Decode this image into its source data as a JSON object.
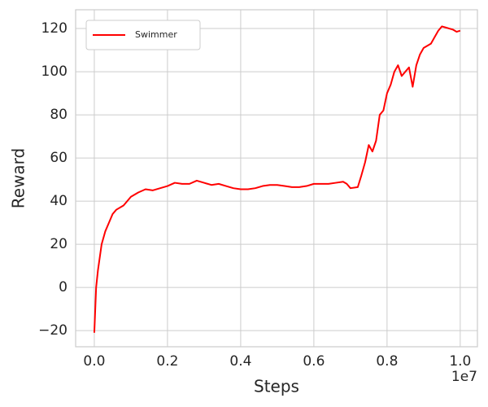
{
  "chart_data": {
    "type": "line",
    "xlabel": "Steps",
    "ylabel": "Reward",
    "x_offset_label": "1e7",
    "x": [
      0,
      0.005,
      0.01,
      0.02,
      0.03,
      0.04,
      0.05,
      0.06,
      0.08,
      0.1,
      0.12,
      0.14,
      0.16,
      0.18,
      0.2,
      0.22,
      0.24,
      0.26,
      0.28,
      0.3,
      0.32,
      0.34,
      0.36,
      0.38,
      0.4,
      0.42,
      0.44,
      0.46,
      0.48,
      0.5,
      0.52,
      0.54,
      0.56,
      0.58,
      0.6,
      0.62,
      0.64,
      0.66,
      0.68,
      0.69,
      0.7,
      0.72,
      0.73,
      0.74,
      0.75,
      0.76,
      0.77,
      0.78,
      0.79,
      0.8,
      0.81,
      0.82,
      0.83,
      0.84,
      0.85,
      0.86,
      0.87,
      0.88,
      0.89,
      0.9,
      0.91,
      0.92,
      0.93,
      0.94,
      0.95,
      0.96,
      0.97,
      0.98,
      0.99,
      1.0
    ],
    "series": [
      {
        "name": "Swimmer",
        "color": "#ff0000",
        "values": [
          -21,
          0,
          8,
          20,
          26,
          30,
          34,
          36,
          38,
          42,
          44,
          45.5,
          45,
          46,
          47,
          48.5,
          48,
          48,
          49.5,
          48.5,
          47.5,
          48,
          47,
          46,
          45.5,
          45.5,
          46,
          47,
          47.5,
          47.5,
          47,
          46.5,
          46.5,
          47,
          48,
          48,
          48,
          48.5,
          49,
          48,
          46,
          46.5,
          52,
          58,
          66,
          63,
          68,
          80,
          82,
          90,
          94,
          100,
          103,
          98,
          100,
          102,
          93,
          103,
          108,
          111,
          112,
          113,
          116,
          119,
          121,
          120.5,
          120,
          119.5,
          118.5,
          119
        ]
      }
    ],
    "xlim": [
      -0.051,
      1.047
    ],
    "ylim": [
      -27.5,
      128.7
    ],
    "xticks": [
      {
        "value": 0,
        "label": "0.0"
      },
      0.2,
      0.4,
      0.6,
      0.8,
      {
        "value": 1,
        "label": "1.0"
      }
    ],
    "yticks": [
      {
        "value": -20,
        "label": "−20"
      },
      0,
      20,
      40,
      60,
      80,
      100,
      120
    ],
    "grid": true,
    "legend": "upper left"
  }
}
